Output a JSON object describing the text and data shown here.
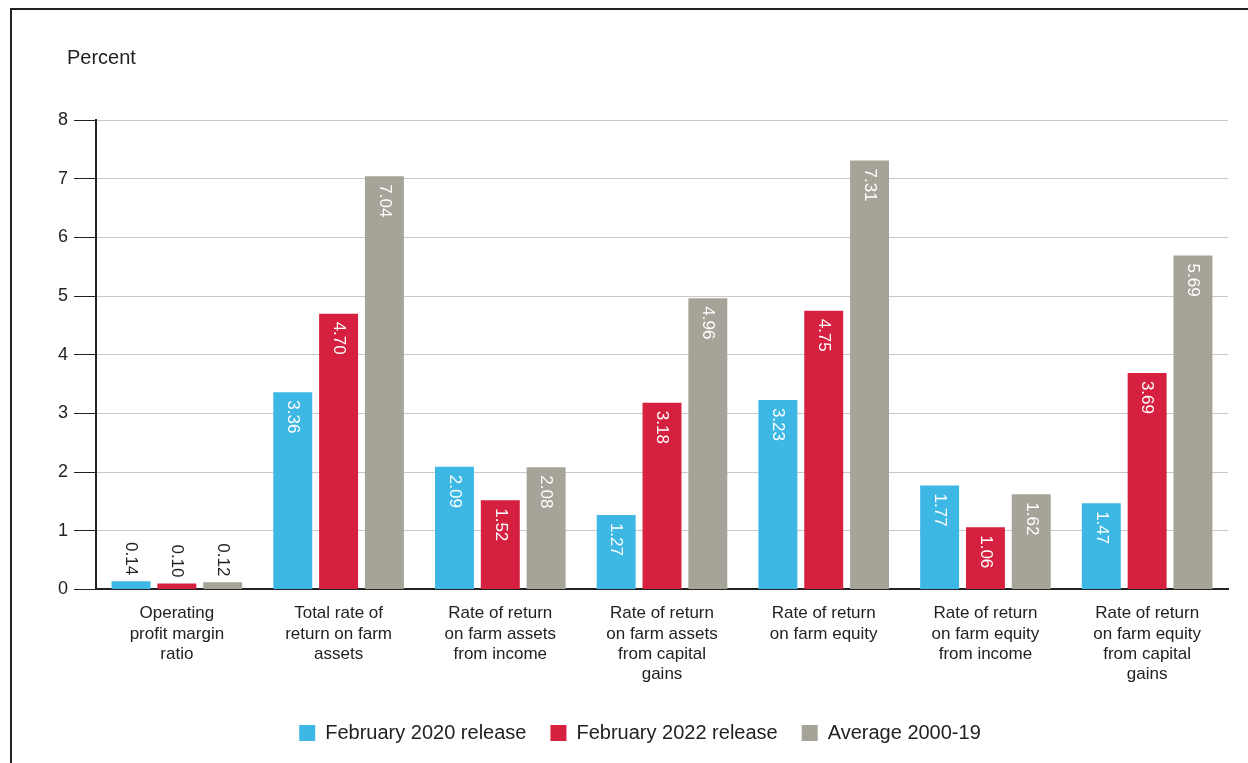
{
  "chart_data": {
    "type": "bar",
    "ylabel": "Percent",
    "categories": [
      "Operating profit margin ratio",
      "Total rate of return on farm assets",
      "Rate of return on farm assets from income",
      "Rate of return on farm assets from capital gains",
      "Rate of return on farm equity",
      "Rate of return on farm equity from income",
      "Rate of return on farm equity from capital gains"
    ],
    "series": [
      {
        "name": "February 2020 release",
        "color": "#3db7e4",
        "values": [
          0.14,
          3.36,
          2.09,
          1.27,
          3.23,
          1.77,
          1.47
        ],
        "value_labels": [
          "0.14",
          "3.36",
          "2.09",
          "1.27",
          "3.23",
          "1.77",
          "1.47"
        ]
      },
      {
        "name": "February 2022 release",
        "color": "#d62040",
        "values": [
          0.1,
          4.7,
          1.52,
          3.18,
          4.75,
          1.06,
          3.69
        ],
        "value_labels": [
          "0.10",
          "4.70",
          "1.52",
          "3.18",
          "4.75",
          "1.06",
          "3.69"
        ]
      },
      {
        "name": "Average 2000-19",
        "color": "#a6a398",
        "values": [
          0.12,
          7.04,
          2.08,
          4.96,
          7.31,
          1.62,
          5.69
        ],
        "value_labels": [
          "0.12",
          "7.04",
          "2.08",
          "4.96",
          "7.31",
          "1.62",
          "5.69"
        ]
      }
    ],
    "ylim": [
      0,
      8
    ],
    "yticks": [
      0,
      1,
      2,
      3,
      4,
      5,
      6,
      7,
      8
    ],
    "grid": "y",
    "legend": "bottom"
  }
}
